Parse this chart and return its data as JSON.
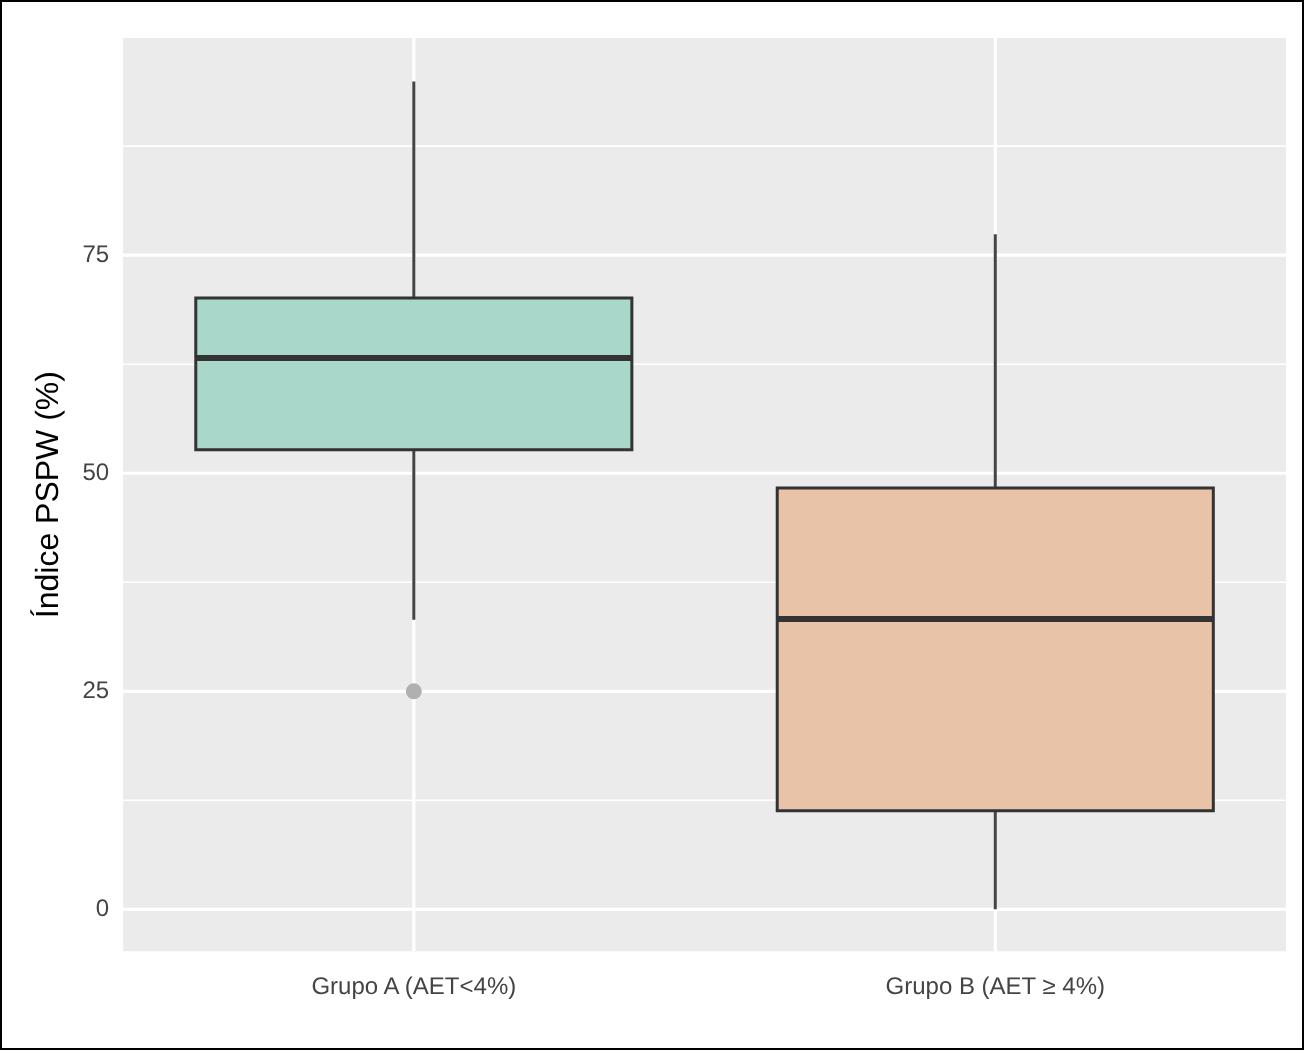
{
  "chart_data": {
    "type": "box",
    "ylabel": "Índice PSPW (%)",
    "categories": [
      "Grupo A (AET<4%)",
      "Grupo B (AET ≥ 4%)"
    ],
    "boxes": [
      {
        "low": 33.2,
        "q1": 52.7,
        "median": 63.2,
        "q3": 70.1,
        "high": 94.9,
        "outliers": [
          25
        ]
      },
      {
        "low": 0,
        "q1": 11.3,
        "median": 33.3,
        "q3": 48.3,
        "high": 77.4
      }
    ],
    "colors": [
      "#a9d7c9",
      "#e8c3a7"
    ],
    "ylim": [
      -4.8,
      99.9
    ],
    "yticks": [
      0,
      25,
      50,
      75
    ],
    "grid": true
  }
}
